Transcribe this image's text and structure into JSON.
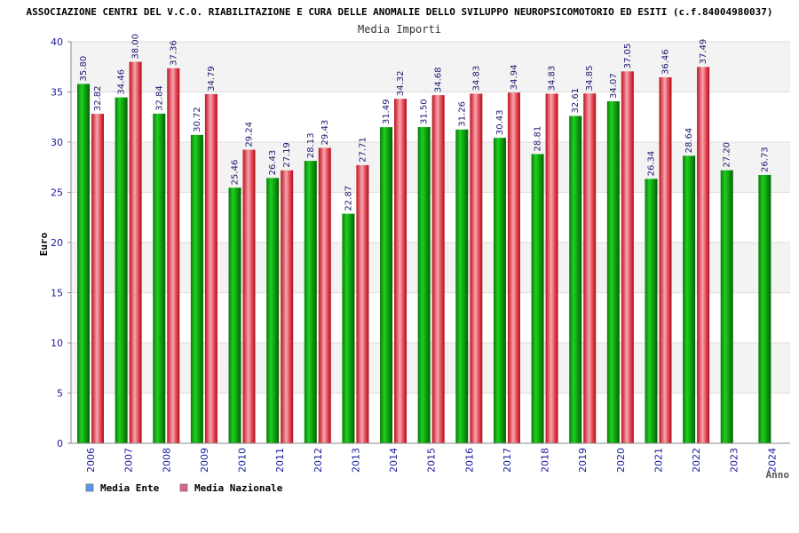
{
  "chart_data": {
    "type": "bar",
    "title": "ASSOCIAZIONE CENTRI DEL V.C.O. RIABILITAZIONE E CURA DELLE ANOMALIE DELLO SVILUPPO NEUROPSICOMOTORIO ED ESITI (c.f.84004980037)",
    "subtitle": "Media Importi",
    "xlabel": "Anno",
    "ylabel": "Euro",
    "ylim": [
      0,
      40
    ],
    "yticks": [
      "0",
      "5",
      "10",
      "15",
      "20",
      "25",
      "30",
      "35",
      "40"
    ],
    "grid": true,
    "legend_position": "bottom-left",
    "categories": [
      "2006",
      "2007",
      "2008",
      "2009",
      "2010",
      "2011",
      "2012",
      "2013",
      "2014",
      "2015",
      "2016",
      "2017",
      "2018",
      "2019",
      "2020",
      "2021",
      "2022",
      "2023",
      "2024"
    ],
    "series": [
      {
        "name": "Media Ente",
        "color": "#22aa22",
        "legend_color": "#5599ee",
        "values": [
          35.8,
          34.46,
          32.84,
          30.72,
          25.46,
          26.43,
          28.13,
          22.87,
          31.49,
          31.5,
          31.26,
          30.43,
          28.81,
          32.61,
          34.07,
          26.34,
          28.64,
          27.2,
          26.73
        ],
        "labels": [
          "35.80",
          "34.46",
          "32.84",
          "30.72",
          "25.46",
          "26.43",
          "28.13",
          "22.87",
          "31.49",
          "31.50",
          "31.26",
          "30.43",
          "28.81",
          "32.61",
          "34.07",
          "26.34",
          "28.64",
          "27.20",
          "26.73"
        ]
      },
      {
        "name": "Media Nazionale",
        "color": "#e03040",
        "legend_color": "#dd6688",
        "values": [
          32.82,
          38.0,
          37.36,
          34.79,
          29.24,
          27.19,
          29.43,
          27.71,
          34.32,
          34.68,
          34.83,
          34.94,
          34.83,
          34.85,
          37.05,
          36.46,
          37.49,
          null,
          null
        ],
        "labels": [
          "32.82",
          "38.00",
          "37.36",
          "34.79",
          "29.24",
          "27.19",
          "29.43",
          "27.71",
          "34.32",
          "34.68",
          "34.83",
          "34.94",
          "34.83",
          "34.85",
          "37.05",
          "36.46",
          "37.49",
          null,
          null
        ]
      }
    ]
  }
}
